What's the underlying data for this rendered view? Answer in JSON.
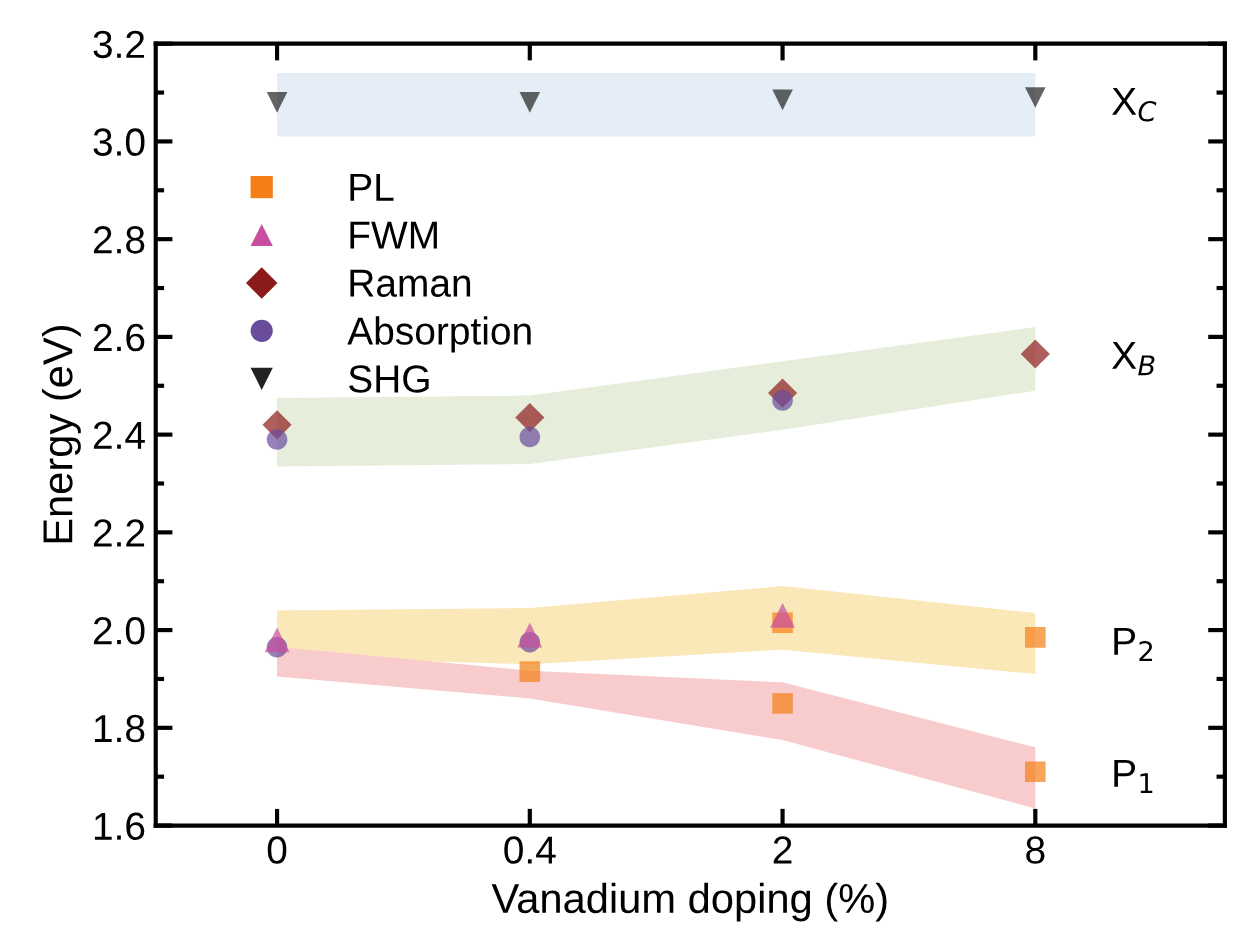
{
  "chart_data": {
    "type": "scatter",
    "xlabel": "Vanadium doping (%)",
    "ylabel": "Energy (eV)",
    "categories": [
      "0",
      "0.4",
      "2",
      "8"
    ],
    "ylim": [
      1.6,
      3.2
    ],
    "yticks": [
      {
        "value": 1.6,
        "label": "1.6"
      },
      {
        "value": 1.8,
        "label": "1.8"
      },
      {
        "value": 2.0,
        "label": "2.0"
      },
      {
        "value": 2.2,
        "label": "2.2"
      },
      {
        "value": 2.4,
        "label": "2.4"
      },
      {
        "value": 2.6,
        "label": "2.6"
      },
      {
        "value": 2.8,
        "label": "2.8"
      },
      {
        "value": 3.0,
        "label": "3.0"
      },
      {
        "value": 3.2,
        "label": "3.2"
      }
    ],
    "grid": false,
    "legend": "top left",
    "annotations": [
      {
        "text": "X$_{C}$",
        "x": "8",
        "y": 3.075
      },
      {
        "text": "X$_{B}$",
        "x": "8",
        "y": 2.555
      },
      {
        "text": "P$_{2}$",
        "x": "8",
        "y": 1.97
      },
      {
        "text": "P$_{1}$",
        "x": "8",
        "y": 1.7
      }
    ],
    "series": [
      {
        "type": "area",
        "color": "#e5edf7",
        "values": [
          null,
          null,
          null,
          null
        ],
        "lower": [
          3.01,
          3.01,
          3.01,
          3.01
        ],
        "upper": [
          3.14,
          3.14,
          3.14,
          3.14
        ]
      },
      {
        "type": "area",
        "color": "#e6eedb",
        "values": [
          null,
          null,
          null,
          null
        ],
        "lower": [
          2.335,
          2.34,
          2.41,
          2.49
        ],
        "upper": [
          2.475,
          2.48,
          2.55,
          2.62
        ]
      },
      {
        "type": "area",
        "color": "#fbe8b8",
        "values": [
          null,
          null,
          null,
          null
        ],
        "lower": [
          1.946,
          1.93,
          1.96,
          1.91
        ],
        "upper": [
          2.04,
          2.045,
          2.09,
          2.035
        ]
      },
      {
        "type": "area",
        "color": "#f8cccc",
        "values": [
          null,
          null,
          null,
          null
        ],
        "lower": [
          1.905,
          1.86,
          1.775,
          1.635
        ],
        "upper": [
          1.966,
          1.917,
          1.893,
          1.76
        ]
      },
      {
        "name": "PL",
        "color": "#f57f17",
        "marker": "square",
        "x": [
          "0.4",
          "2",
          "2",
          "8",
          "8"
        ],
        "values": [
          1.915,
          2.015,
          1.85,
          1.985,
          1.71
        ]
      },
      {
        "name": "FWM",
        "color": "#c84fa0",
        "marker": "triangle",
        "x": [
          "0",
          "0.4",
          "2"
        ],
        "values": [
          1.98,
          1.99,
          2.03
        ]
      },
      {
        "name": "Raman",
        "color": "#8b1a1a",
        "marker": "diamond",
        "x": [
          "0",
          "0.4",
          "2",
          "8"
        ],
        "values": [
          2.42,
          2.435,
          2.485,
          2.565
        ]
      },
      {
        "name": "Absorption",
        "color": "#6a4c9c",
        "marker": "circle",
        "x": [
          "0",
          "0.4",
          "2",
          "0",
          "0.4"
        ],
        "values": [
          2.39,
          2.395,
          2.47,
          1.965,
          1.975
        ]
      },
      {
        "name": "SHG",
        "color": "#222222",
        "marker": "triangle_down",
        "x": [
          "0",
          "0.4",
          "2",
          "8"
        ],
        "values": [
          3.08,
          3.08,
          3.085,
          3.09
        ]
      }
    ]
  }
}
